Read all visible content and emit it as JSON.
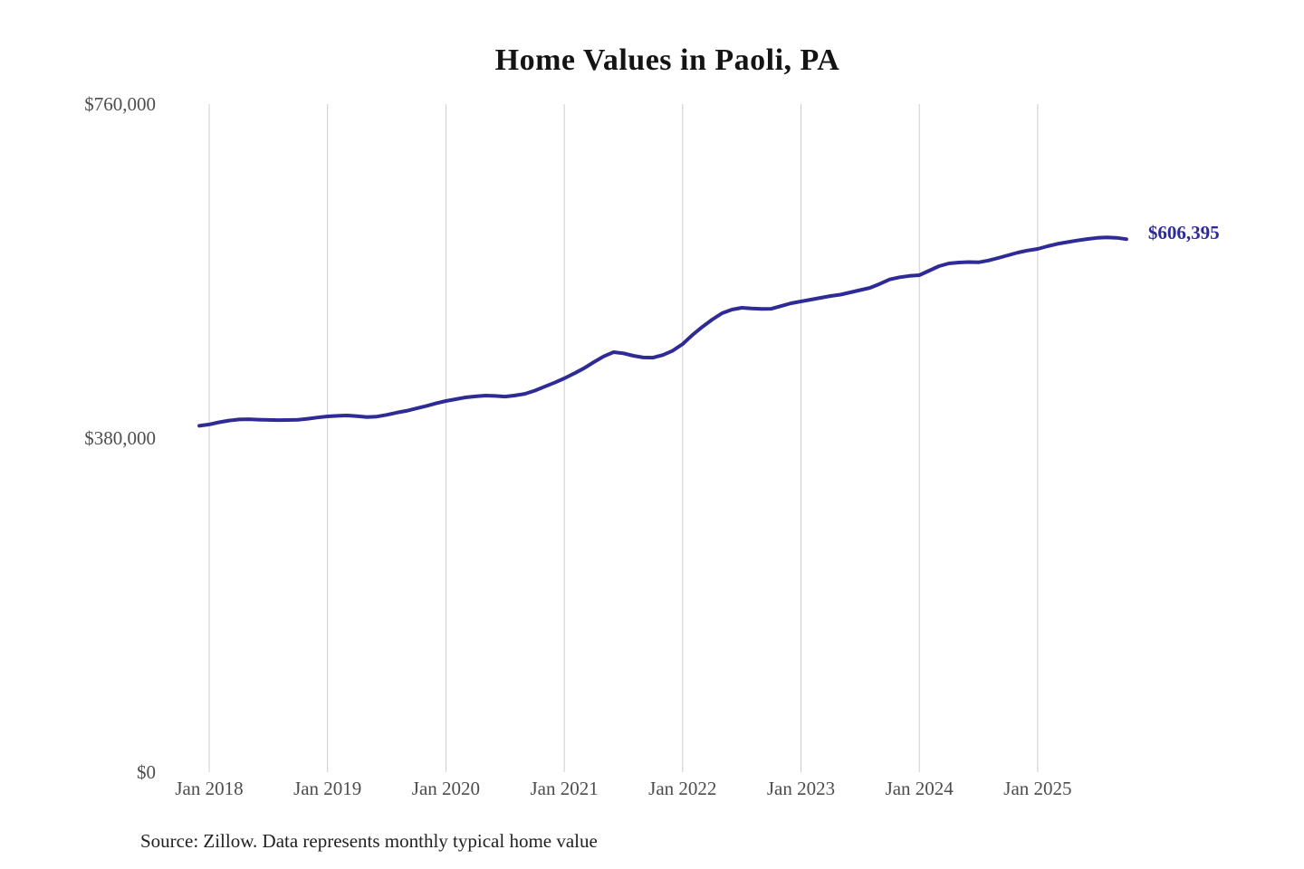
{
  "chart_data": {
    "type": "line",
    "title": "Home Values in Paoli, PA",
    "xlabel": "",
    "ylabel": "",
    "ylim": [
      0,
      760000
    ],
    "grid": "vertical-only",
    "legend": "none",
    "line_color": "#2f2b96",
    "gridline_color": "#cccccc",
    "tick_color": "#4d4d4d",
    "title_color": "#141414",
    "end_label": "$606,395",
    "end_value": 606395,
    "source_note": "Source: Zillow. Data represents monthly typical home value",
    "y_ticks": [
      {
        "label": "$0",
        "value": 0
      },
      {
        "label": "$380,000",
        "value": 380000
      },
      {
        "label": "$760,000",
        "value": 760000
      }
    ],
    "x_ticks": [
      {
        "label": "Jan 2018",
        "month": "2018-01"
      },
      {
        "label": "Jan 2019",
        "month": "2019-01"
      },
      {
        "label": "Jan 2020",
        "month": "2020-01"
      },
      {
        "label": "Jan 2021",
        "month": "2021-01"
      },
      {
        "label": "Jan 2022",
        "month": "2022-01"
      },
      {
        "label": "Jan 2023",
        "month": "2023-01"
      },
      {
        "label": "Jan 2024",
        "month": "2024-01"
      },
      {
        "label": "Jan 2025",
        "month": "2025-01"
      }
    ],
    "months": [
      "2017-12",
      "2018-01",
      "2018-02",
      "2018-03",
      "2018-04",
      "2018-05",
      "2018-06",
      "2018-07",
      "2018-08",
      "2018-09",
      "2018-10",
      "2018-11",
      "2018-12",
      "2019-01",
      "2019-02",
      "2019-03",
      "2019-04",
      "2019-05",
      "2019-06",
      "2019-07",
      "2019-08",
      "2019-09",
      "2019-10",
      "2019-11",
      "2019-12",
      "2020-01",
      "2020-02",
      "2020-03",
      "2020-04",
      "2020-05",
      "2020-06",
      "2020-07",
      "2020-08",
      "2020-09",
      "2020-10",
      "2020-11",
      "2020-12",
      "2021-01",
      "2021-02",
      "2021-03",
      "2021-04",
      "2021-05",
      "2021-06",
      "2021-07",
      "2021-08",
      "2021-09",
      "2021-10",
      "2021-11",
      "2021-12",
      "2022-01",
      "2022-02",
      "2022-03",
      "2022-04",
      "2022-05",
      "2022-06",
      "2022-07",
      "2022-08",
      "2022-09",
      "2022-10",
      "2022-11",
      "2022-12",
      "2023-01",
      "2023-02",
      "2023-03",
      "2023-04",
      "2023-05",
      "2023-06",
      "2023-07",
      "2023-08",
      "2023-09",
      "2023-10",
      "2023-11",
      "2023-12",
      "2024-01",
      "2024-02",
      "2024-03",
      "2024-04",
      "2024-05",
      "2024-06",
      "2024-07",
      "2024-08",
      "2024-09",
      "2024-10",
      "2024-11",
      "2024-12",
      "2025-01",
      "2025-02",
      "2025-03",
      "2025-04",
      "2025-05",
      "2025-06",
      "2025-07",
      "2025-08",
      "2025-09",
      "2025-10"
    ],
    "values": [
      394000,
      395500,
      398000,
      400000,
      401200,
      401500,
      401000,
      400700,
      400500,
      400600,
      400800,
      402000,
      403500,
      404700,
      405300,
      405700,
      405000,
      403900,
      404500,
      406500,
      408900,
      411000,
      413800,
      416500,
      419500,
      422200,
      424300,
      426300,
      427500,
      428400,
      428000,
      427300,
      428500,
      430400,
      434000,
      438500,
      443000,
      448000,
      453500,
      459500,
      466500,
      473000,
      477800,
      476500,
      473700,
      471800,
      471600,
      474500,
      479500,
      487000,
      497400,
      506600,
      514900,
      522100,
      526200,
      528300,
      527500,
      527000,
      527200,
      530300,
      533400,
      535500,
      537600,
      539600,
      541700,
      543200,
      545800,
      548400,
      551000,
      555500,
      560500,
      563000,
      564500,
      565400,
      570500,
      575700,
      578800,
      579800,
      580300,
      580000,
      582000,
      584900,
      588000,
      591100,
      593500,
      595200,
      598300,
      601000,
      603000,
      604800,
      606500,
      607800,
      608300,
      607900,
      606395
    ]
  }
}
